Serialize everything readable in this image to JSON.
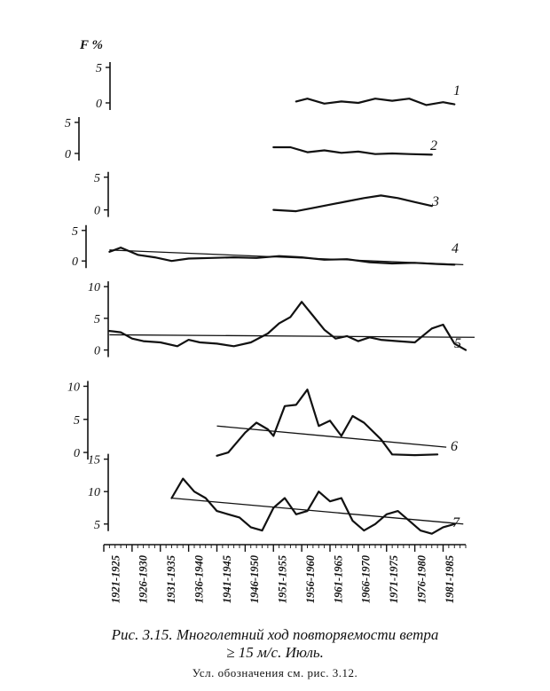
{
  "figure": {
    "y_unit_label": "F %",
    "caption_line1": "Рис. 3.15. Многолетний ход повторяемости ветра",
    "caption_line2": "≥ 15 м/с. Июль.",
    "note": "Усл. обозначения см. рис. 3.12."
  },
  "chart_data": {
    "type": "line",
    "x_tick_labels": [
      "1921-1925",
      "1926-1930",
      "1931-1935",
      "1936-1940",
      "1941-1945",
      "1946-1950",
      "1951-1955",
      "1956-1960",
      "1961-1965",
      "1966-1970",
      "1971-1975",
      "1976-1980",
      "1981-1985"
    ],
    "xlim": [
      1921,
      1985
    ],
    "panels": [
      {
        "label": "1",
        "y_ticks": [
          "5",
          "0"
        ],
        "ylim": [
          -1,
          7
        ],
        "x": [
          1955,
          1957,
          1960,
          1963,
          1966,
          1969,
          1972,
          1975,
          1978,
          1981,
          1983
        ],
        "y": [
          0.2,
          0.6,
          -0.1,
          0.2,
          0.0,
          0.6,
          0.3,
          0.6,
          -0.3,
          0.1,
          -0.2
        ]
      },
      {
        "label": "2",
        "y_ticks": [
          "5",
          "0"
        ],
        "ylim": [
          -1,
          7
        ],
        "x": [
          1951,
          1954,
          1957,
          1960,
          1963,
          1966,
          1969,
          1972,
          1975,
          1979
        ],
        "y": [
          1.0,
          1.0,
          0.2,
          0.5,
          0.1,
          0.3,
          -0.1,
          0.0,
          -0.1,
          -0.2
        ]
      },
      {
        "label": "3",
        "y_ticks": [
          "5",
          "0"
        ],
        "ylim": [
          -1,
          7
        ],
        "x": [
          1951,
          1955,
          1958,
          1961,
          1964,
          1967,
          1970,
          1973,
          1976,
          1979
        ],
        "y": [
          0.0,
          -0.2,
          0.3,
          0.8,
          1.3,
          1.8,
          2.2,
          1.8,
          1.2,
          0.6
        ]
      },
      {
        "label": "4",
        "y_ticks": [
          "5",
          "0"
        ],
        "ylim": [
          -2,
          7
        ],
        "x": [
          1922,
          1924,
          1927,
          1930,
          1933,
          1936,
          1940,
          1944,
          1948,
          1952,
          1956,
          1960,
          1964,
          1968,
          1972,
          1976,
          1980,
          1983
        ],
        "y": [
          1.5,
          2.2,
          1.0,
          0.6,
          0.0,
          0.4,
          0.5,
          0.6,
          0.5,
          0.8,
          0.6,
          0.2,
          0.3,
          -0.2,
          -0.4,
          -0.3,
          -0.5,
          -0.6
        ],
        "trend_y": [
          1.8,
          -0.6
        ]
      },
      {
        "label": "5",
        "y_ticks": [
          "10",
          "5",
          "0"
        ],
        "ylim": [
          -3,
          11
        ],
        "x": [
          1922,
          1924,
          1926,
          1928,
          1931,
          1934,
          1936,
          1938,
          1941,
          1944,
          1947,
          1950,
          1952,
          1954,
          1956,
          1958,
          1960,
          1962,
          1964,
          1966,
          1968,
          1970,
          1973,
          1976,
          1979,
          1981,
          1983,
          1985
        ],
        "y": [
          3.0,
          2.8,
          1.8,
          1.4,
          1.2,
          0.6,
          1.6,
          1.2,
          1.0,
          0.6,
          1.2,
          2.6,
          4.2,
          5.2,
          7.6,
          5.4,
          3.2,
          1.8,
          2.2,
          1.4,
          2.0,
          1.6,
          1.4,
          1.2,
          3.4,
          4.0,
          1.0,
          0.0
        ],
        "trend_y": [
          2.4,
          2.0
        ]
      },
      {
        "label": "6",
        "y_ticks": [
          "10",
          "5",
          "0"
        ],
        "ylim": [
          -2,
          11
        ],
        "x": [
          1941,
          1943,
          1946,
          1948,
          1950,
          1951,
          1953,
          1955,
          1957,
          1959,
          1961,
          1963,
          1965,
          1967,
          1970,
          1972,
          1976,
          1980
        ],
        "y": [
          -0.5,
          0.0,
          3.0,
          4.5,
          3.5,
          2.5,
          7.0,
          7.2,
          9.5,
          4.0,
          4.8,
          2.5,
          5.5,
          4.5,
          2.0,
          -0.3,
          -0.4,
          -0.3
        ],
        "trend_y": [
          4.0,
          0.8
        ]
      },
      {
        "label": "7",
        "y_ticks": [
          "15",
          "10",
          "5"
        ],
        "ylim": [
          1,
          17
        ],
        "x": [
          1933,
          1935,
          1937,
          1939,
          1941,
          1943,
          1945,
          1947,
          1949,
          1951,
          1953,
          1955,
          1957,
          1959,
          1961,
          1963,
          1965,
          1967,
          1969,
          1971,
          1973,
          1975,
          1977,
          1979,
          1981,
          1983
        ],
        "y": [
          9,
          12,
          10,
          9,
          7,
          6.5,
          6,
          4.5,
          4.0,
          7.5,
          9.0,
          6.5,
          7.0,
          10.0,
          8.5,
          9.0,
          5.5,
          4.0,
          5.0,
          6.5,
          7.0,
          5.5,
          4.0,
          3.5,
          4.5,
          5.0
        ],
        "trend_y": [
          9.0,
          5.0
        ]
      }
    ]
  }
}
